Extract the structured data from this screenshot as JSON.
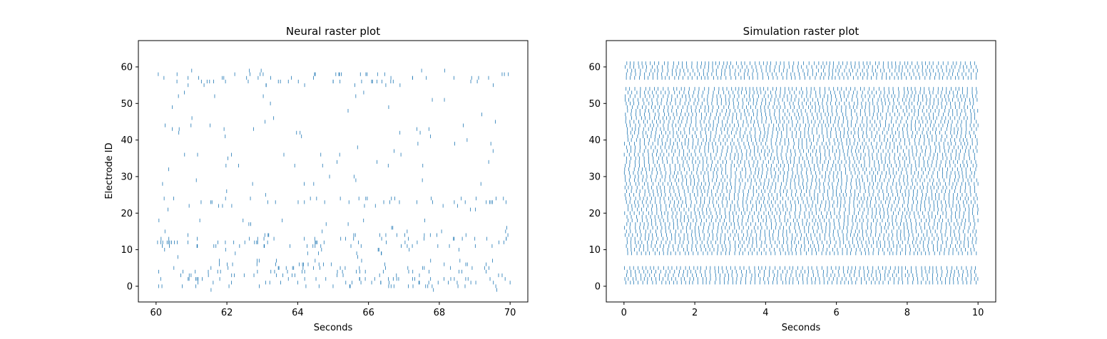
{
  "chart_data": [
    {
      "type": "raster",
      "title": "Neural raster plot",
      "xlabel": "Seconds",
      "ylabel": "Electrode ID",
      "xlim": [
        59.5,
        70.5
      ],
      "ylim": [
        -4.3,
        67.2
      ],
      "xticks": [
        60,
        62,
        64,
        66,
        68,
        70
      ],
      "yticks": [
        0,
        10,
        20,
        30,
        40,
        50,
        60
      ],
      "color": "#1f77b4",
      "grid": false,
      "x_span": [
        60,
        70
      ],
      "dense_rows": [
        0,
        2,
        4,
        6,
        11,
        13,
        23,
        56,
        58
      ],
      "sparse_rows": [
        8,
        15,
        18,
        21,
        25,
        29,
        33,
        36,
        39,
        42,
        44,
        46,
        49,
        52
      ]
    },
    {
      "type": "raster",
      "title": "Simulation raster plot",
      "xlabel": "Seconds",
      "ylabel": "",
      "xlim": [
        -0.5,
        10.5
      ],
      "ylim": [
        -4.3,
        67.2
      ],
      "xticks": [
        0,
        2,
        4,
        6,
        8,
        10
      ],
      "yticks": [
        0,
        10,
        20,
        30,
        40,
        50,
        60
      ],
      "color": "#1f77b4",
      "grid": false,
      "x_span": [
        0,
        10
      ],
      "populated_rows": [
        [
          1,
          5
        ],
        [
          9,
          54
        ],
        [
          57,
          61
        ]
      ]
    }
  ]
}
